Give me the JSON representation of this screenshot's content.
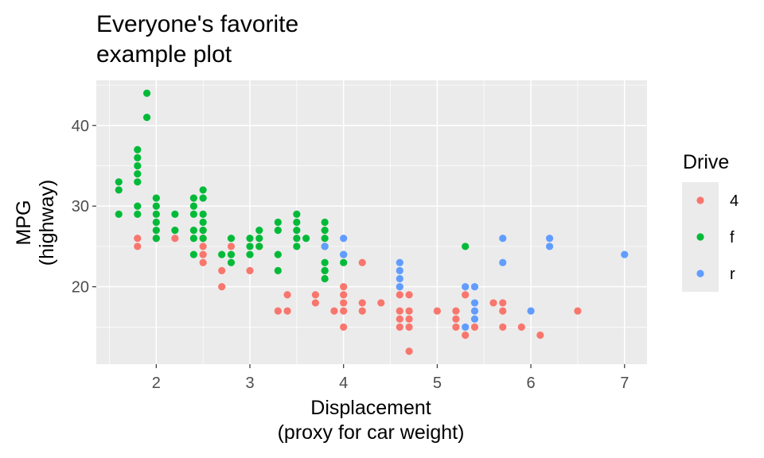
{
  "chart_data": {
    "type": "scatter",
    "title": [
      "Everyone's favorite",
      "example plot"
    ],
    "xlabel": [
      "Displacement",
      "(proxy for car weight)"
    ],
    "ylabel": [
      "MPG",
      "(highway)"
    ],
    "xlim": [
      1.36,
      7.24
    ],
    "ylim": [
      10.4,
      45.6
    ],
    "x_ticks": [
      2,
      3,
      4,
      5,
      6,
      7
    ],
    "y_ticks": [
      20,
      30,
      40
    ],
    "grid": true,
    "legend": {
      "title": "Drive",
      "placement": "right",
      "entries": [
        "4",
        "f",
        "r"
      ]
    },
    "colors": {
      "4": "#F8766D",
      "f": "#00BA38",
      "r": "#619CFF",
      "panel": "#EBEBEB",
      "grid": "#FFFFFF"
    },
    "series": [
      {
        "name": "4",
        "points": [
          [
            1.8,
            26
          ],
          [
            1.8,
            25
          ],
          [
            2.0,
            26
          ],
          [
            2.2,
            26
          ],
          [
            2.5,
            27
          ],
          [
            2.5,
            26
          ],
          [
            2.5,
            25
          ],
          [
            2.5,
            24
          ],
          [
            2.5,
            23
          ],
          [
            2.7,
            22
          ],
          [
            2.7,
            20
          ],
          [
            2.8,
            25
          ],
          [
            3.0,
            22
          ],
          [
            3.1,
            25
          ],
          [
            3.3,
            17
          ],
          [
            3.4,
            19
          ],
          [
            3.4,
            17
          ],
          [
            3.7,
            19
          ],
          [
            3.7,
            18
          ],
          [
            3.9,
            17
          ],
          [
            4.0,
            20
          ],
          [
            4.0,
            19
          ],
          [
            4.0,
            18
          ],
          [
            4.0,
            17
          ],
          [
            4.0,
            15
          ],
          [
            4.2,
            18
          ],
          [
            4.2,
            17
          ],
          [
            4.4,
            18
          ],
          [
            4.6,
            19
          ],
          [
            4.6,
            17
          ],
          [
            4.6,
            16
          ],
          [
            4.6,
            15
          ],
          [
            4.7,
            19
          ],
          [
            4.7,
            17
          ],
          [
            4.7,
            16
          ],
          [
            4.7,
            15
          ],
          [
            4.7,
            12
          ],
          [
            5.0,
            17
          ],
          [
            5.2,
            17
          ],
          [
            5.2,
            16
          ],
          [
            5.2,
            15
          ],
          [
            5.3,
            19
          ],
          [
            5.3,
            14
          ],
          [
            5.4,
            15
          ],
          [
            5.6,
            18
          ],
          [
            5.7,
            18
          ],
          [
            5.7,
            17
          ],
          [
            5.7,
            15
          ],
          [
            5.9,
            15
          ],
          [
            6.1,
            14
          ],
          [
            6.5,
            17
          ],
          [
            4.2,
            23
          ]
        ]
      },
      {
        "name": "f",
        "points": [
          [
            1.6,
            33
          ],
          [
            1.6,
            32
          ],
          [
            1.6,
            29
          ],
          [
            1.8,
            37
          ],
          [
            1.8,
            36
          ],
          [
            1.8,
            35
          ],
          [
            1.8,
            34
          ],
          [
            1.8,
            33
          ],
          [
            1.8,
            30
          ],
          [
            1.8,
            29
          ],
          [
            1.9,
            44
          ],
          [
            1.9,
            41
          ],
          [
            2.0,
            31
          ],
          [
            2.0,
            30
          ],
          [
            2.0,
            29
          ],
          [
            2.0,
            28
          ],
          [
            2.0,
            27
          ],
          [
            2.0,
            26
          ],
          [
            2.2,
            29
          ],
          [
            2.2,
            27
          ],
          [
            2.4,
            31
          ],
          [
            2.4,
            30
          ],
          [
            2.4,
            29
          ],
          [
            2.4,
            27
          ],
          [
            2.4,
            26
          ],
          [
            2.4,
            24
          ],
          [
            2.5,
            32
          ],
          [
            2.5,
            31
          ],
          [
            2.5,
            29
          ],
          [
            2.5,
            28
          ],
          [
            2.5,
            27
          ],
          [
            2.5,
            26
          ],
          [
            2.7,
            24
          ],
          [
            2.8,
            26
          ],
          [
            2.8,
            24
          ],
          [
            2.8,
            23
          ],
          [
            3.0,
            26
          ],
          [
            3.0,
            25
          ],
          [
            3.0,
            24
          ],
          [
            3.1,
            27
          ],
          [
            3.1,
            26
          ],
          [
            3.1,
            25
          ],
          [
            3.3,
            28
          ],
          [
            3.3,
            27
          ],
          [
            3.3,
            24
          ],
          [
            3.3,
            22
          ],
          [
            3.5,
            29
          ],
          [
            3.5,
            28
          ],
          [
            3.5,
            27
          ],
          [
            3.5,
            26
          ],
          [
            3.5,
            25
          ],
          [
            3.6,
            26
          ],
          [
            3.8,
            28
          ],
          [
            3.8,
            27
          ],
          [
            3.8,
            26
          ],
          [
            3.8,
            25
          ],
          [
            3.8,
            23
          ],
          [
            3.8,
            22
          ],
          [
            3.8,
            21
          ],
          [
            3.8,
            22
          ],
          [
            4.0,
            24
          ],
          [
            4.0,
            23
          ],
          [
            5.3,
            25
          ]
        ]
      },
      {
        "name": "r",
        "points": [
          [
            3.8,
            25
          ],
          [
            4.0,
            26
          ],
          [
            4.0,
            24
          ],
          [
            4.6,
            23
          ],
          [
            4.6,
            22
          ],
          [
            4.6,
            21
          ],
          [
            4.6,
            20
          ],
          [
            5.3,
            20
          ],
          [
            5.3,
            15
          ],
          [
            5.4,
            20
          ],
          [
            5.4,
            18
          ],
          [
            5.4,
            17
          ],
          [
            5.4,
            16
          ],
          [
            5.7,
            26
          ],
          [
            5.7,
            23
          ],
          [
            6.0,
            17
          ],
          [
            6.2,
            26
          ],
          [
            6.2,
            25
          ],
          [
            7.0,
            24
          ]
        ]
      }
    ]
  }
}
